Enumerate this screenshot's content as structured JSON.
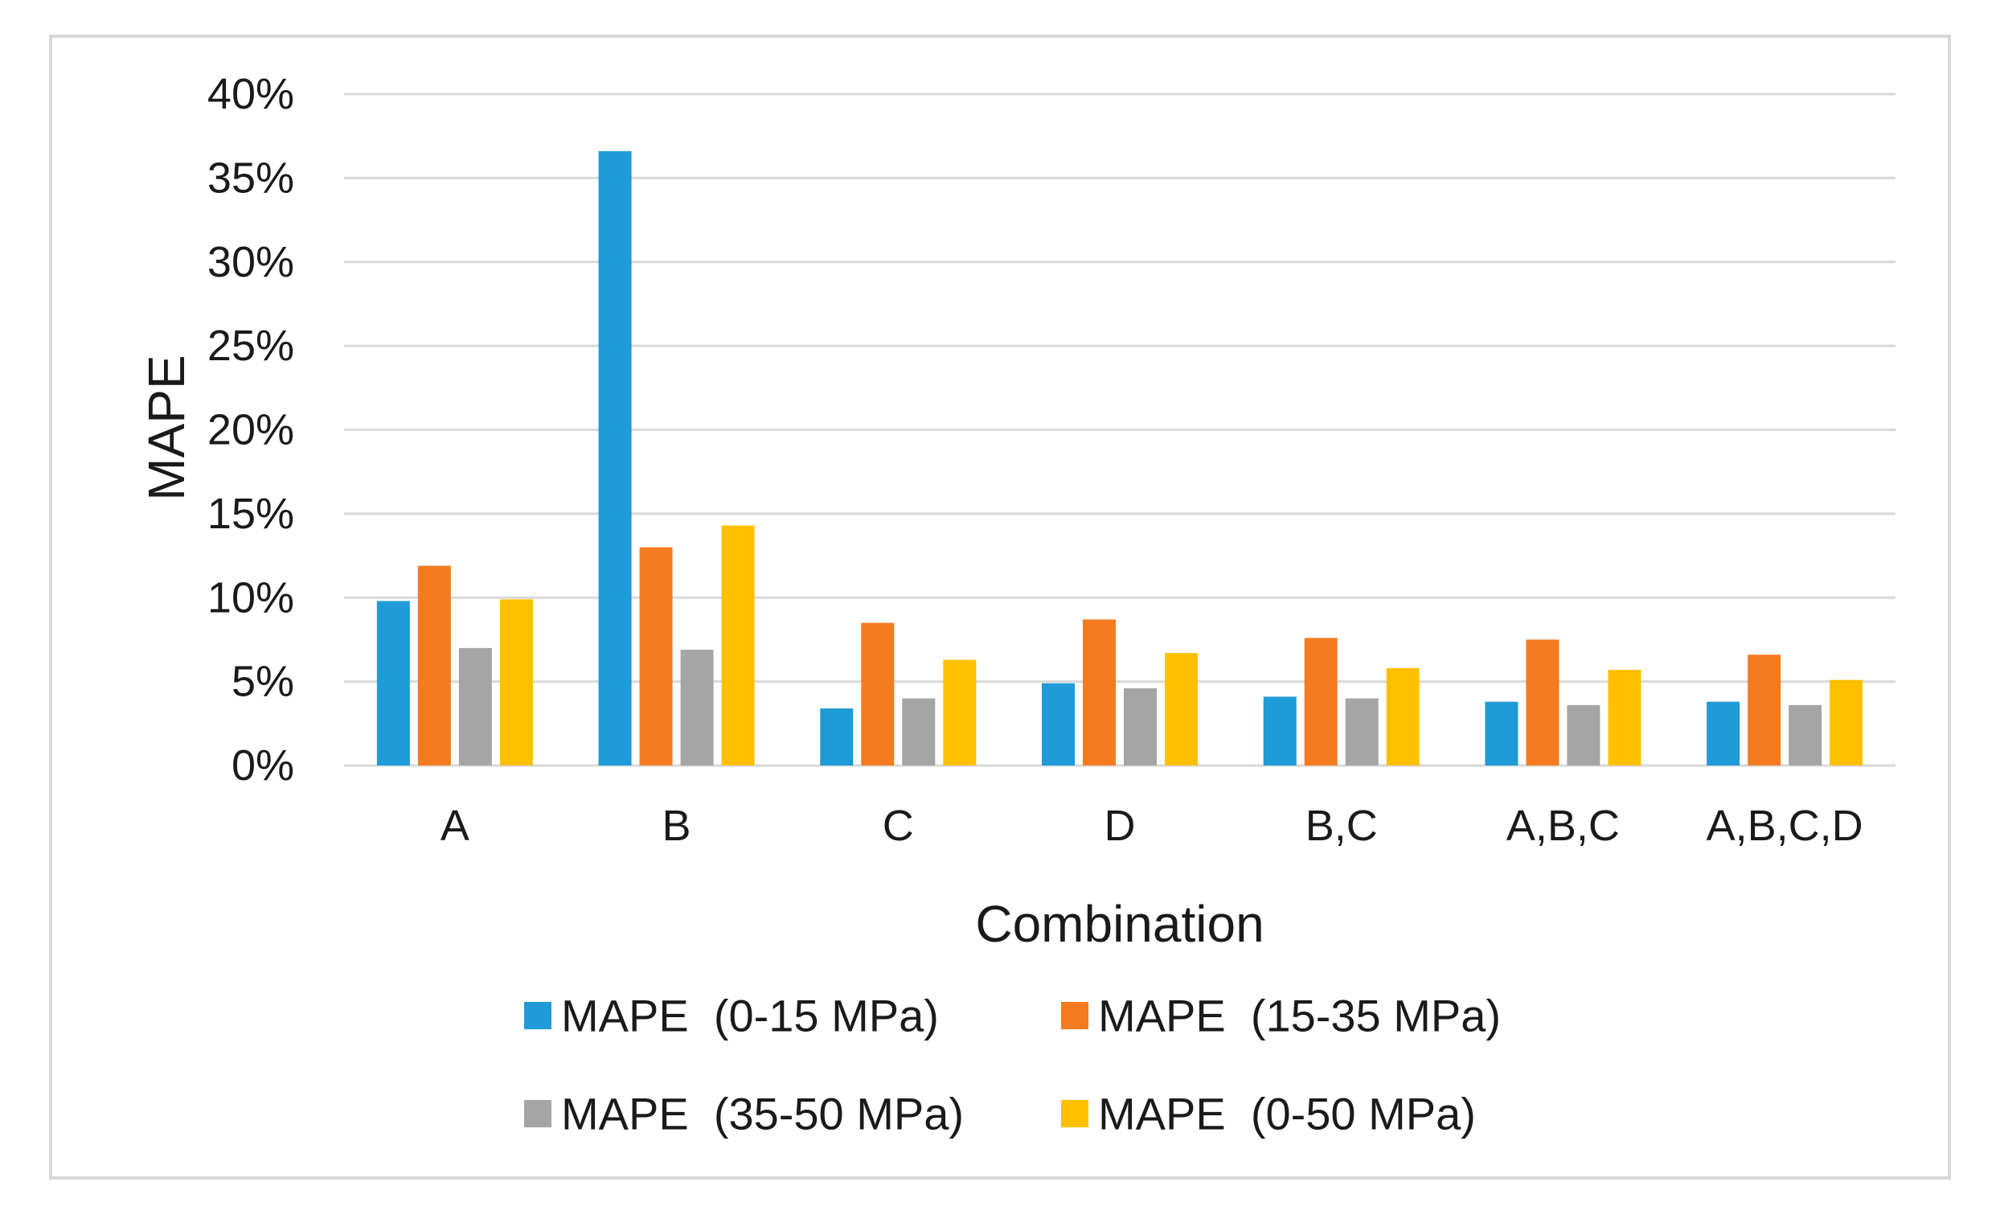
{
  "chart_data": {
    "type": "bar",
    "title": "",
    "xlabel": "Combination",
    "ylabel": "MAPE",
    "ylim": [
      0,
      40
    ],
    "yticks": [
      0,
      5,
      10,
      15,
      20,
      25,
      30,
      35,
      40
    ],
    "ytick_labels": [
      "0%",
      "5%",
      "10%",
      "15%",
      "20%",
      "25%",
      "30%",
      "35%",
      "40%"
    ],
    "grid": true,
    "legend_position": "bottom",
    "categories": [
      "A",
      "B",
      "C",
      "D",
      "B,C",
      "A,B,C",
      "A,B,C,D"
    ],
    "series": [
      {
        "name": "MAPE  (0-15 MPa)",
        "color": "#1f9bd7",
        "values": [
          9.8,
          36.6,
          3.4,
          4.9,
          4.1,
          3.8,
          3.8
        ]
      },
      {
        "name": "MAPE  (15-35 MPa)",
        "color": "#f47b20",
        "values": [
          11.9,
          13.0,
          8.5,
          8.7,
          7.6,
          7.5,
          6.6
        ]
      },
      {
        "name": "MAPE  (35-50 MPa)",
        "color": "#a5a5a5",
        "values": [
          7.0,
          6.9,
          4.0,
          4.6,
          4.0,
          3.6,
          3.6
        ]
      },
      {
        "name": "MAPE  (0-50 MPa)",
        "color": "#ffc000",
        "values": [
          9.9,
          14.3,
          6.3,
          6.7,
          5.8,
          5.7,
          5.1
        ]
      }
    ]
  },
  "colors": {
    "gridline": "#d9d9d9",
    "frame_border": "#d9d9d9",
    "text": "#1a1a1a"
  }
}
